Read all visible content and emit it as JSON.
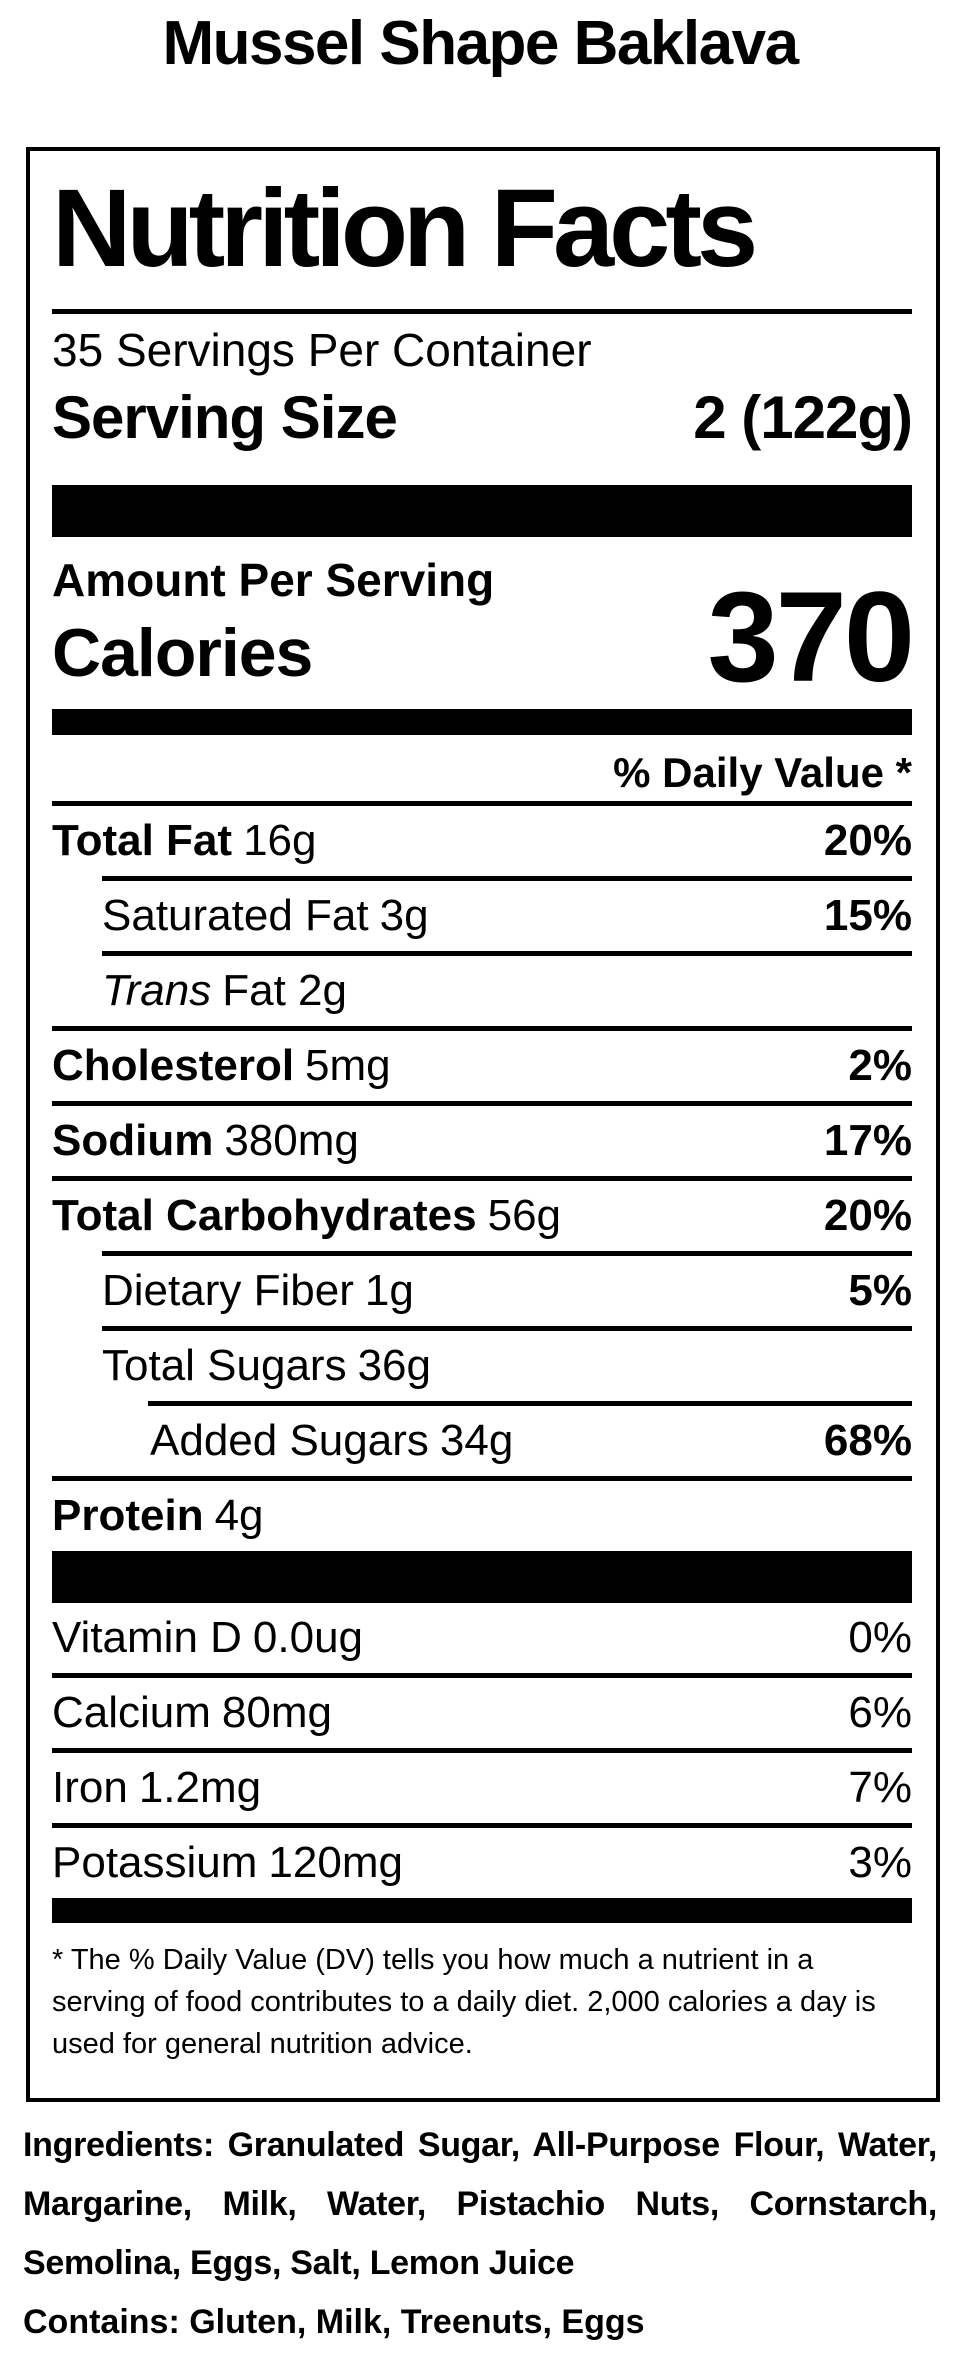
{
  "page": {
    "title": "Mussel Shape Baklava"
  },
  "nutrition_facts": {
    "heading": "Nutrition Facts",
    "servings_per_container": "35 Servings Per Container",
    "serving_size": {
      "label": "Serving Size",
      "value": "2 (122g)"
    },
    "amount_per_serving": "Amount Per Serving",
    "calories": {
      "label": "Calories",
      "value": "370"
    },
    "daily_value_header": "% Daily Value *",
    "rows": [
      {
        "name": "Total Fat",
        "amount": "16g",
        "daily_value": "20%"
      },
      {
        "name": "Saturated Fat",
        "amount": "3g",
        "daily_value": "15%"
      },
      {
        "name": "Trans",
        "amount": "Fat 2g",
        "daily_value": ""
      },
      {
        "name": "Cholesterol",
        "amount": "5mg",
        "daily_value": "2%"
      },
      {
        "name": "Sodium",
        "amount": "380mg",
        "daily_value": "17%"
      },
      {
        "name": "Total Carbohydrates",
        "amount": "56g",
        "daily_value": "20%"
      },
      {
        "name": "Dietary Fiber",
        "amount": "1g",
        "daily_value": "5%"
      },
      {
        "name": "Total Sugars",
        "amount": "36g",
        "daily_value": ""
      },
      {
        "name": "Added Sugars",
        "amount": "34g",
        "daily_value": "68%"
      },
      {
        "name": "Protein",
        "amount": "4g",
        "daily_value": ""
      }
    ],
    "micronutrients": [
      {
        "name": "Vitamin D",
        "amount": "0.0ug",
        "daily_value": "0%"
      },
      {
        "name": "Calcium",
        "amount": "80mg",
        "daily_value": "6%"
      },
      {
        "name": "Iron",
        "amount": "1.2mg",
        "daily_value": "7%"
      },
      {
        "name": "Potassium",
        "amount": "120mg",
        "daily_value": "3%"
      }
    ],
    "footnote": "* The % Daily Value (DV) tells you how much a nutrient in a serving of food contributes to a daily diet. 2,000 calories a day is used for general nutrition advice."
  },
  "ingredients": {
    "text": "Ingredients: Granulated Sugar, All-Purpose Flour, Water, Margarine, Milk, Water, Pistachio Nuts, Cornstarch, Semolina, Eggs, Salt, Lemon Juice",
    "contains": "Contains: Gluten, Milk, Treenuts, Eggs"
  },
  "colors": {
    "text": "#000000",
    "background": "#ffffff"
  }
}
